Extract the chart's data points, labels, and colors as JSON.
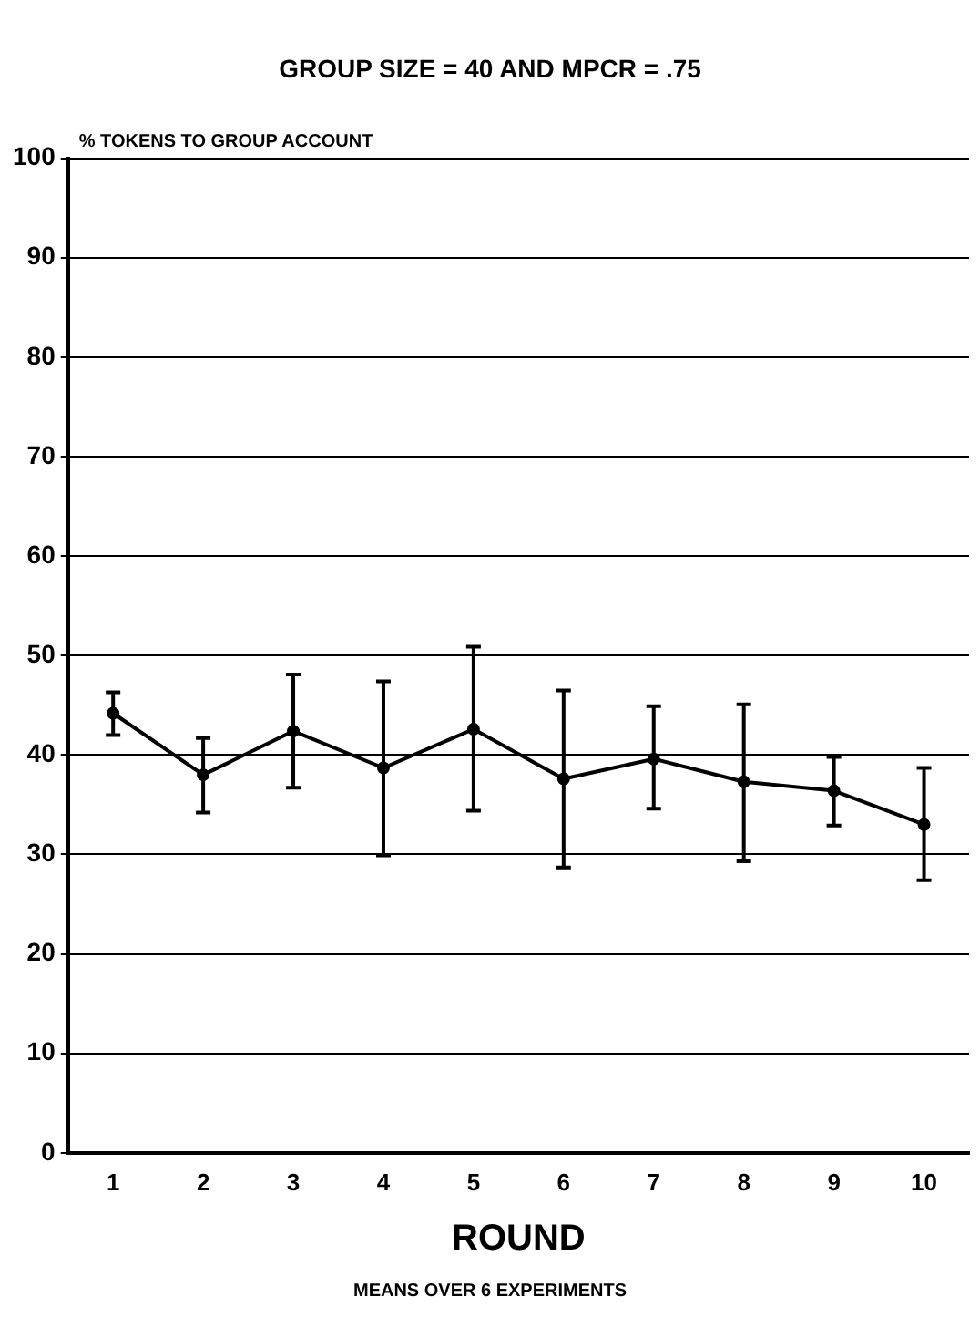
{
  "chart_data": {
    "type": "line",
    "title": "GROUP SIZE = 40 AND MPCR = .75",
    "subtitle": "MEANS OVER 6 EXPERIMENTS",
    "xlabel": "ROUND",
    "ylabel": "% TOKENS TO GROUP ACCOUNT",
    "categories": [
      "1",
      "2",
      "3",
      "4",
      "5",
      "6",
      "7",
      "8",
      "9",
      "10"
    ],
    "series": [
      {
        "color": "#000000",
        "values": [
          44.2,
          38.0,
          42.4,
          38.7,
          42.6,
          37.6,
          39.6,
          37.3,
          36.4,
          33.0
        ],
        "errors": [
          [
            42.0,
            46.3
          ],
          [
            34.2,
            41.7
          ],
          [
            36.7,
            48.1
          ],
          [
            29.9,
            47.4
          ],
          [
            34.4,
            50.9
          ],
          [
            28.7,
            46.5
          ],
          [
            34.6,
            44.9
          ],
          [
            29.3,
            45.1
          ],
          [
            32.9,
            39.8
          ],
          [
            27.4,
            38.7
          ]
        ]
      }
    ],
    "ylim": [
      0,
      100
    ],
    "yticks": [
      0,
      10,
      20,
      30,
      40,
      50,
      60,
      70,
      80,
      90,
      100
    ],
    "grid": "y",
    "legend": false,
    "marker": "circle",
    "line_style": "solid"
  }
}
